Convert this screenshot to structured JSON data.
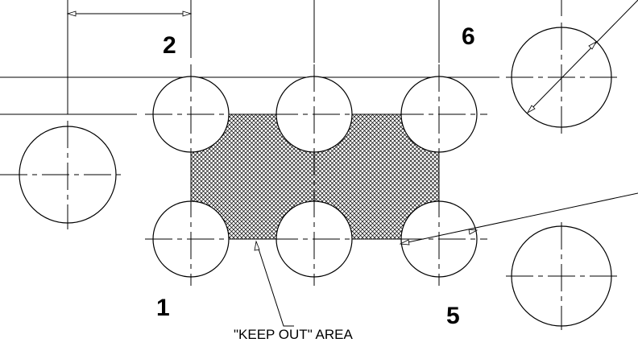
{
  "labels": {
    "pin1": "1",
    "pin2": "2",
    "pin5": "5",
    "pin6": "6",
    "keep_out": "\"KEEP OUT\" AREA"
  },
  "colors": {
    "line": "#000000",
    "hatch": "#000000",
    "background": "#ffffff"
  }
}
